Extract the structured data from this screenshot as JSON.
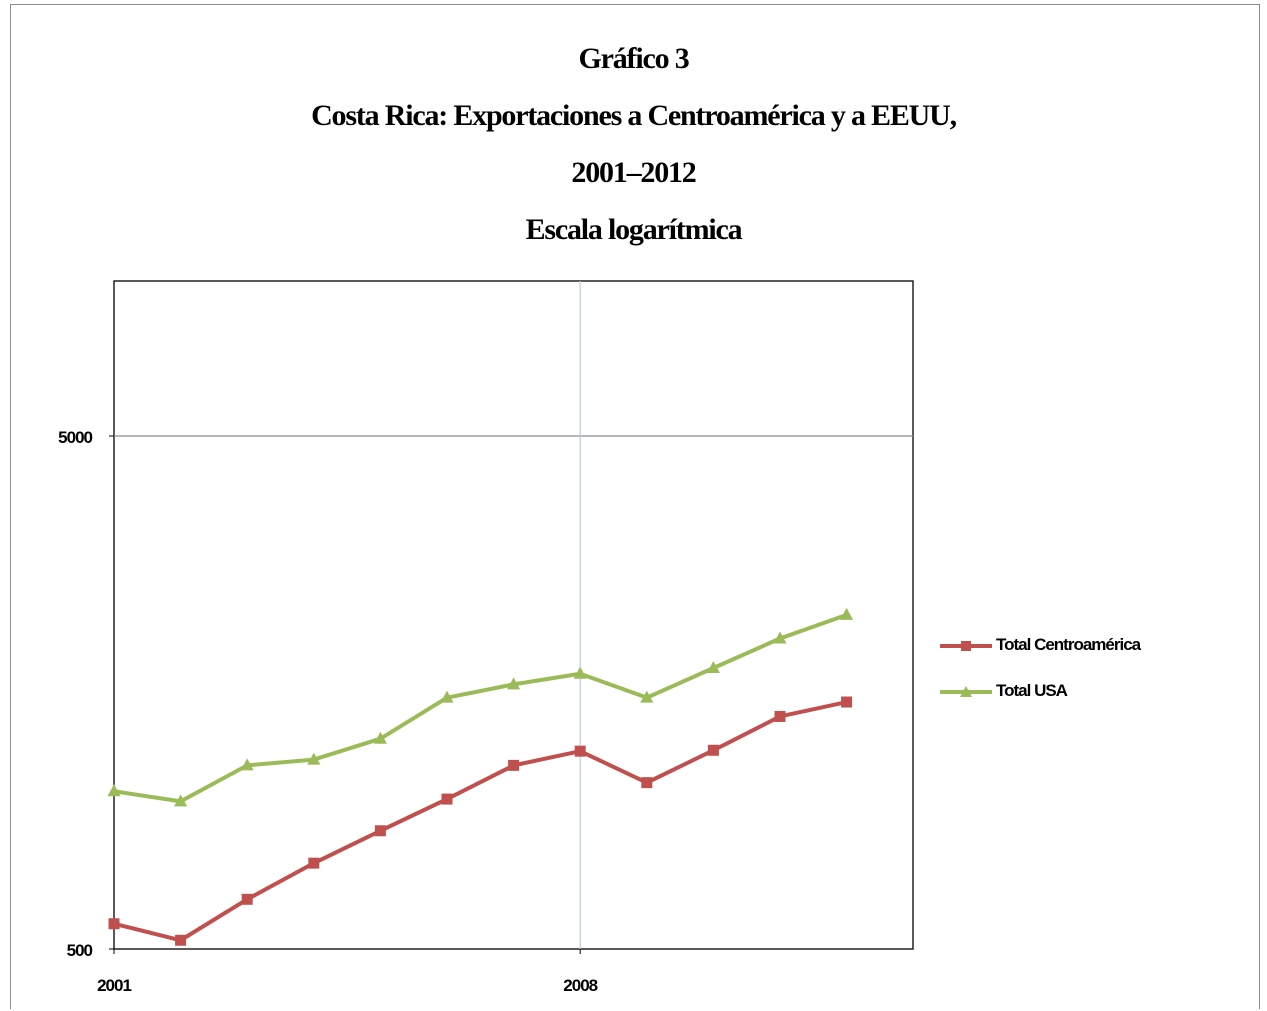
{
  "chart_data": {
    "type": "line",
    "title_lines": [
      "Gráfico 3",
      "Costa Rica: Exportaciones a Centroamérica y a EEUU,",
      "2001–2012",
      "Escala logarítmica"
    ],
    "y_scale": "log",
    "ylim": [
      500,
      9000
    ],
    "y_ticks": [
      5000,
      500
    ],
    "y_tick_labels": [
      "5000",
      "500"
    ],
    "x": [
      2001,
      2002,
      2003,
      2004,
      2005,
      2006,
      2007,
      2008,
      2009,
      2010,
      2011,
      2012
    ],
    "x_tick_labels": [
      "2001",
      "2008"
    ],
    "x_tick_values": [
      2001,
      2008
    ],
    "grid": "major gridlines at 5000 and 2008",
    "legend_position": "right",
    "series": [
      {
        "name": "Total Centroamérica",
        "color": "#c0504d",
        "marker": "square",
        "values": [
          560,
          520,
          625,
          735,
          850,
          980,
          1140,
          1215,
          1055,
          1220,
          1420,
          1515
        ]
      },
      {
        "name": "Total USA",
        "color": "#9bbb59",
        "marker": "triangle",
        "values": [
          1015,
          970,
          1140,
          1170,
          1285,
          1545,
          1640,
          1720,
          1545,
          1765,
          2015,
          2240
        ]
      }
    ]
  }
}
